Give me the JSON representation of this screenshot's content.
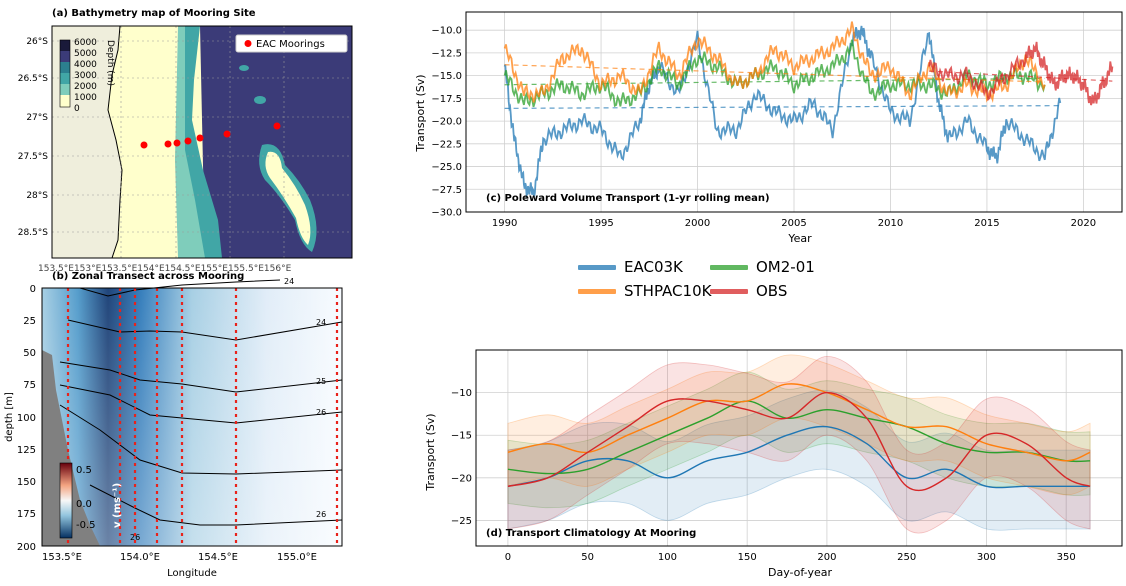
{
  "panel_a": {
    "title": "(a) Bathymetry map of Mooring Site",
    "colorbar_label": "Depth (m)",
    "colorbar_ticks": [
      "6000",
      "5000",
      "4000",
      "3000",
      "2000",
      "1000",
      "0"
    ],
    "legend_label": "EAC Moorings",
    "y_ticks": [
      "26°S",
      "26.5°S",
      "27°S",
      "27.5°S",
      "28°S",
      "28.5°S"
    ],
    "x_ticks_text": "153.5°E153°E153.5°E154°E154.5°E155°E155.5°E156°E"
  },
  "panel_b": {
    "title": "(b) Zonal Transect across Mooring",
    "xlabel": "Longitude",
    "ylabel": "depth [m]",
    "x_ticks": [
      "153.5°E",
      "154.0°E",
      "154.5°E",
      "155.0°E"
    ],
    "y_ticks": [
      "0",
      "25",
      "50",
      "75",
      "100",
      "125",
      "150",
      "175",
      "200"
    ],
    "colorbar_label": "v (ms⁻¹)",
    "colorbar_ticks": [
      "0.5",
      "0.0",
      "-0.5"
    ],
    "contour_labels": [
      "24",
      "24",
      "25",
      "26",
      "26",
      "26"
    ]
  },
  "panel_c": {
    "title": "(c) Poleward Volume Transport (1-yr rolling mean)",
    "xlabel": "Year",
    "ylabel": "Transport (Sv)",
    "x_ticks": [
      "1990",
      "1995",
      "2000",
      "2005",
      "2010",
      "2015",
      "2020"
    ],
    "y_ticks": [
      "−10.0",
      "−12.5",
      "−15.0",
      "−17.5",
      "−20.0",
      "−22.5",
      "−25.0",
      "−27.5",
      "−30.0"
    ]
  },
  "panel_d": {
    "title": "(d) Transport Climatology At Mooring",
    "xlabel": "Day-of-year",
    "ylabel": "Transport (Sv)",
    "x_ticks": [
      "0",
      "50",
      "100",
      "150",
      "200",
      "250",
      "300",
      "350"
    ],
    "y_ticks": [
      "−10",
      "−15",
      "−20",
      "−25"
    ]
  },
  "legend": [
    {
      "name": "EAC03K",
      "color": "#1f77b4"
    },
    {
      "name": "OM2-01",
      "color": "#2ca02c"
    },
    {
      "name": "STHPAC10K",
      "color": "#ff7f0e"
    },
    {
      "name": "OBS",
      "color": "#d62728"
    }
  ],
  "chart_data": [
    {
      "type": "line",
      "panel": "c",
      "x_label": "Year",
      "y_label": "Transport (Sv)",
      "xlim": [
        1988,
        2022
      ],
      "ylim": [
        -30,
        -8
      ],
      "grid": true,
      "series": [
        {
          "name": "EAC03K",
          "color": "#1f77b4",
          "x": [
            1990.0,
            1990.5,
            1991.0,
            1991.5,
            1992.0,
            1993.0,
            1994.0,
            1995.0,
            1996.0,
            1997.0,
            1997.5,
            1998.0,
            1999.0,
            2000.0,
            2001.0,
            2002.0,
            2003.0,
            2004.0,
            2005.0,
            2006.0,
            2007.0,
            2008.0,
            2008.5,
            2009.0,
            2010.0,
            2011.0,
            2012.0,
            2012.5,
            2013.0,
            2014.0,
            2015.0,
            2015.5,
            2016.0,
            2017.0,
            2018.0,
            2018.8
          ],
          "y": [
            -14,
            -22,
            -27,
            -28,
            -22,
            -21,
            -20,
            -21,
            -24,
            -20,
            -16,
            -14,
            -17,
            -11,
            -21,
            -21,
            -17,
            -19,
            -20,
            -18,
            -21,
            -11,
            -10,
            -13,
            -19,
            -20,
            -10,
            -18,
            -22,
            -20,
            -23,
            -24,
            -20,
            -22,
            -24,
            -18
          ],
          "trend": [
            -18.6,
            -18.3
          ]
        },
        {
          "name": "OM2-01",
          "color": "#2ca02c",
          "x": [
            1990.0,
            1991.0,
            1992.0,
            1993.0,
            1994.0,
            1995.0,
            1996.0,
            1997.0,
            1998.0,
            1999.0,
            2000.0,
            2001.0,
            2002.0,
            2003.0,
            2004.0,
            2005.0,
            2006.0,
            2007.0,
            2008.0,
            2009.0,
            2010.0,
            2011.0,
            2012.0,
            2013.0,
            2014.0,
            2015.0,
            2016.0,
            2017.0,
            2018.0
          ],
          "y": [
            -15,
            -18,
            -17,
            -16,
            -17,
            -16,
            -18,
            -17,
            -14,
            -16,
            -13,
            -14,
            -16,
            -15,
            -14,
            -16,
            -15,
            -14,
            -12,
            -17,
            -16,
            -16,
            -16,
            -17,
            -15,
            -16,
            -15,
            -15,
            -16
          ],
          "trend": [
            -16.0,
            -15.3
          ]
        },
        {
          "name": "STHPAC10K",
          "color": "#ff7f0e",
          "x": [
            1990.0,
            1991.0,
            1992.0,
            1993.0,
            1994.0,
            1995.0,
            1996.0,
            1997.0,
            1998.0,
            1999.0,
            2000.0,
            2001.0,
            2002.0,
            2003.0,
            2004.0,
            2005.0,
            2006.0,
            2007.0,
            2008.0,
            2009.0,
            2010.0,
            2011.0,
            2012.0,
            2013.0,
            2014.0,
            2015.0,
            2016.0,
            2017.0,
            2018.0
          ],
          "y": [
            -12,
            -17,
            -17,
            -13,
            -12,
            -16,
            -15,
            -17,
            -12,
            -15,
            -11,
            -13,
            -16,
            -15,
            -12,
            -14,
            -13,
            -12,
            -10,
            -15,
            -14,
            -17,
            -14,
            -17,
            -16,
            -17,
            -16,
            -13,
            -16
          ],
          "trend": [
            -13.8,
            -15.7
          ]
        },
        {
          "name": "OBS",
          "color": "#d62728",
          "x": [
            2012.0,
            2013.0,
            2014.0,
            2015.0,
            2016.0,
            2017.0,
            2017.5,
            2018.0,
            2018.5,
            2019.0,
            2019.5,
            2020.0,
            2020.5,
            2021.0,
            2021.5
          ],
          "y": [
            -14,
            -15,
            -15,
            -17,
            -15,
            -13,
            -12,
            -14,
            -16,
            -15,
            -15,
            -16,
            -18,
            -16,
            -14
          ],
          "trend": [
            -14.5,
            -15.6
          ]
        }
      ]
    },
    {
      "type": "line",
      "panel": "d",
      "x_label": "Day-of-year",
      "y_label": "Transport (Sv)",
      "xlim": [
        -20,
        385
      ],
      "ylim": [
        -28,
        -5
      ],
      "grid": true,
      "x": [
        0,
        25,
        50,
        75,
        100,
        125,
        150,
        175,
        200,
        225,
        250,
        275,
        300,
        325,
        350,
        365
      ],
      "series": [
        {
          "name": "EAC03K",
          "color": "#1f77b4",
          "values": [
            -21,
            -20,
            -18,
            -18,
            -20,
            -18,
            -17,
            -15,
            -14,
            -16,
            -20,
            -19,
            -21,
            -21,
            -21,
            -21
          ],
          "band_width": 5
        },
        {
          "name": "OM2-01",
          "color": "#2ca02c",
          "values": [
            -19,
            -19.5,
            -19,
            -17,
            -15,
            -13,
            -11,
            -13,
            -12,
            -13,
            -14,
            -16,
            -17,
            -17,
            -18,
            -18
          ],
          "band_width": 4
        },
        {
          "name": "STHPAC10K",
          "color": "#ff7f0e",
          "values": [
            -17,
            -16,
            -17,
            -15,
            -13,
            -11,
            -11,
            -9,
            -10,
            -12,
            -14,
            -14,
            -16,
            -17,
            -18,
            -17
          ],
          "band_width": 4
        },
        {
          "name": "OBS",
          "color": "#d62728",
          "values": [
            -21,
            -20,
            -17,
            -14,
            -11,
            -11,
            -12,
            -13,
            -10,
            -13,
            -21,
            -20,
            -15,
            -16,
            -20,
            -21
          ],
          "band_width": 5
        }
      ]
    }
  ]
}
